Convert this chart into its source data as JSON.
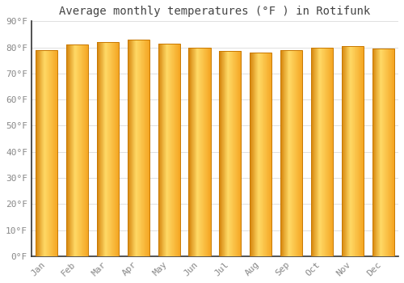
{
  "title": "Average monthly temperatures (°F ) in Rotifunk",
  "categories": [
    "Jan",
    "Feb",
    "Mar",
    "Apr",
    "May",
    "Jun",
    "Jul",
    "Aug",
    "Sep",
    "Oct",
    "Nov",
    "Dec"
  ],
  "values": [
    79,
    81,
    82,
    83,
    81.5,
    80,
    78.5,
    78,
    79,
    80,
    80.5,
    79.5
  ],
  "ylim": [
    0,
    90
  ],
  "yticks": [
    0,
    10,
    20,
    30,
    40,
    50,
    60,
    70,
    80,
    90
  ],
  "ytick_labels": [
    "0°F",
    "10°F",
    "20°F",
    "30°F",
    "40°F",
    "50°F",
    "60°F",
    "70°F",
    "80°F",
    "90°F"
  ],
  "bar_color_left": "#D4820A",
  "bar_color_center": "#FFD966",
  "bar_color_right": "#F5A623",
  "bar_edge_color": "#C87800",
  "background_color": "#FFFFFF",
  "grid_color": "#E0E0E0",
  "title_fontsize": 10,
  "tick_fontsize": 8,
  "title_color": "#444444",
  "tick_color": "#888888",
  "bar_width": 0.72
}
